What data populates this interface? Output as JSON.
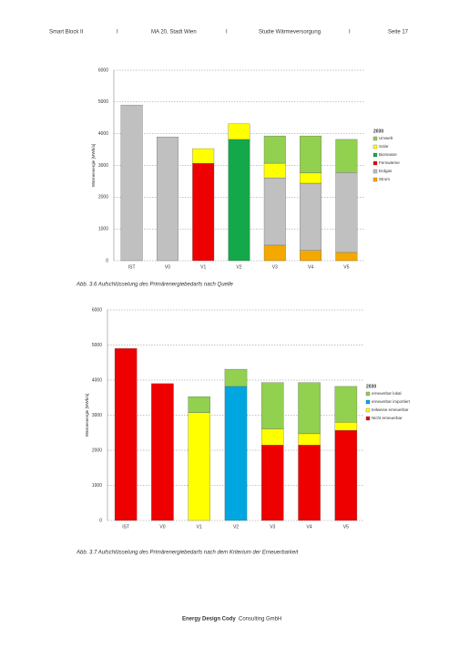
{
  "header": {
    "items": [
      "Smart Block II",
      "I",
      "MA 20, Stadt Wien",
      "I",
      "Studie Wärmeversorgung",
      "I",
      "Seite 17"
    ]
  },
  "footer": {
    "bold": "Energy Design Cody",
    "text": "Consulting GmbH"
  },
  "chart_data": [
    {
      "type": "stacked-bar",
      "caption": "Abb. 3.6 Aufschlüsselung des Primärenergiebedarfs nach Quelle",
      "y_label": "Wärmeenergie [MWh/a]",
      "legend_title": "2030",
      "grid": true,
      "categories": [
        "IST",
        "V0",
        "V1",
        "V2",
        "V3",
        "V4",
        "V5"
      ],
      "ylim": [
        0,
        6000
      ],
      "yticks": [
        0,
        1000,
        2000,
        3000,
        4000,
        5000,
        6000
      ],
      "series": [
        {
          "name": "Strom",
          "color": "#f5a800",
          "values": [
            null,
            null,
            null,
            null,
            490,
            320,
            260
          ]
        },
        {
          "name": "Erdgas",
          "color": "#c0c0c0",
          "values": [
            4900,
            3900,
            null,
            null,
            2120,
            2120,
            2520
          ]
        },
        {
          "name": "Fernwärme",
          "color": "#ee0000",
          "values": [
            null,
            null,
            3070,
            null,
            null,
            null,
            null
          ]
        },
        {
          "name": "Biomasse",
          "color": "#13a84a",
          "values": [
            null,
            null,
            null,
            3820,
            null,
            null,
            null
          ]
        },
        {
          "name": "Solar",
          "color": "#ffff00",
          "values": [
            null,
            null,
            460,
            490,
            460,
            320,
            null
          ]
        },
        {
          "name": "Umwelt",
          "color": "#92d050",
          "values": [
            null,
            null,
            null,
            null,
            860,
            1170,
            1040
          ]
        }
      ]
    },
    {
      "type": "stacked-bar",
      "caption": "Abb. 3.7 Aufschlüsselung des Primärenergiebedarfs nach dem Kriterium der Erneuerbarkeit",
      "y_label": "Wärmeenergie [MWh/a]",
      "legend_title": "2030",
      "grid": true,
      "categories": [
        "IST",
        "V0",
        "V1",
        "V2",
        "V3",
        "V4",
        "V5"
      ],
      "ylim": [
        0,
        6000
      ],
      "yticks": [
        0,
        1000,
        2000,
        3000,
        4000,
        5000,
        6000
      ],
      "series": [
        {
          "name": "Nicht erneuerbar",
          "color": "#ee0000",
          "values": [
            4900,
            3900,
            null,
            null,
            2150,
            2150,
            2570
          ]
        },
        {
          "name": "teilweise erneuerbar",
          "color": "#ffff00",
          "values": [
            null,
            null,
            3070,
            null,
            460,
            320,
            230
          ]
        },
        {
          "name": "erneuerbar importiert",
          "color": "#00a6e0",
          "values": [
            null,
            null,
            null,
            3820,
            null,
            null,
            null
          ]
        },
        {
          "name": "erneuerbar lokal",
          "color": "#92d050",
          "values": [
            null,
            null,
            460,
            490,
            1320,
            1460,
            1020
          ]
        }
      ]
    }
  ]
}
